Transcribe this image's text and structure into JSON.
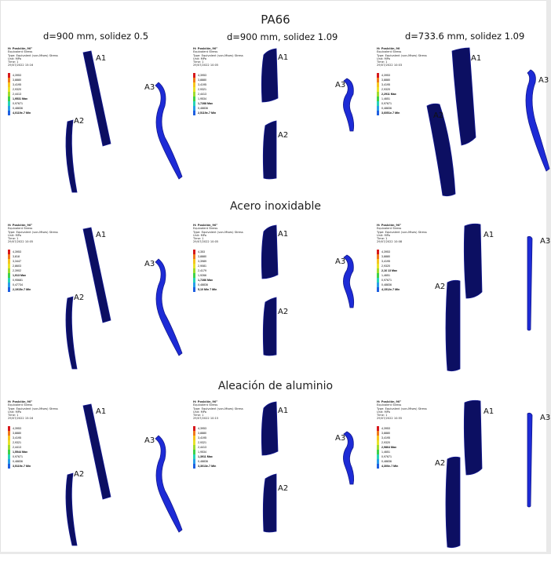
{
  "figure": {
    "main_title": "PA66",
    "columns": [
      "d=900 mm, solidez 0.5",
      "d=900 mm, solidez 1.09",
      "d=733.6 mm, solidez 1.09"
    ],
    "sections": [
      "",
      "Acero inoxidable",
      "Aleación de aluminio"
    ]
  },
  "part_labels": [
    "A1",
    "A2",
    "A3"
  ],
  "colors": {
    "part_dark": "#0c0f62",
    "part_mid": "#12188f",
    "part_light": "#1d2bd6",
    "scale": [
      "#d7191c",
      "#f07a1c",
      "#f6c51e",
      "#e8e22a",
      "#9edc2e",
      "#3fd24a",
      "#28d3b8",
      "#2a9ee8",
      "#1f5fe0",
      "#1a2bd0"
    ]
  },
  "cells": [
    {
      "legend": {
        "header": "H: Posición_90°",
        "lines": [
          "Equivalent Stress",
          "Type: Equivalent (von-Mises) Stress",
          "Unit: MPa",
          "Time: 1",
          "29/07/2022 15:16"
        ],
        "values": [
          "4,3953",
          "3,8880",
          "3,4195",
          "2,9320",
          "2,4413",
          "1,9531 Max",
          "0,97671",
          "0,48836",
          "4,0119e-7 Min"
        ],
        "bold": [
          5,
          8
        ]
      }
    },
    {
      "legend": {
        "header": "H: Posición_90°",
        "lines": [
          "Equivalent Stress",
          "Type: Equivalent (von-Mises) Stress",
          "Unit: MPa",
          "Time: 1",
          "29/07/2022 10:05"
        ],
        "values": [
          "4,3953",
          "3,8880",
          "3,4195",
          "2,9321",
          "2,4413",
          "1,9534",
          "1,7288 Max",
          "0,48836",
          "2,5119e-7 Min"
        ],
        "bold": [
          6,
          8
        ]
      }
    },
    {
      "legend": {
        "header": "H: Posición_90",
        "lines": [
          "Equivalent Stress",
          "Type: Equivalent (von-Mises) Stress",
          "Unit: MPa",
          "Time: 1",
          "29/07/2022 10:03"
        ],
        "values": [
          "4,3953",
          "3,8880",
          "3,4195",
          "2,9320",
          "2,2911 Max",
          "1,4651",
          "0,97671",
          "0,48836",
          "3,6051e-7 Min"
        ],
        "bold": [
          4,
          8
        ]
      }
    },
    {
      "legend": {
        "header": "H: Posición_90°",
        "lines": [
          "Equivalent Stress",
          "Type: Equivalent (von-Mises) Stress",
          "Unit: MPa",
          "Time: 1",
          "29/07/2022 10:05"
        ],
        "values": [
          "4,3953",
          "3,818",
          "3,3447",
          "2,8603",
          "2,3902",
          "1,913 Max",
          "0,95681",
          "0,47734",
          "2,1915e-7 Min"
        ],
        "bold": [
          5,
          8
        ]
      }
    },
    {
      "legend": {
        "header": "H: Posición_90°",
        "lines": [
          "Equivalent Stress",
          "Type: Equivalent (von-Mises) Stress",
          "Unit: MPa",
          "Time: 1",
          "29/07/2022 10:05"
        ],
        "values": [
          "4,353",
          "3,8880",
          "3,3989",
          "2,9081",
          "2,4179",
          "1,9266",
          "1,7286 Max",
          "0,48836",
          "5,10 Min 7 Min"
        ],
        "bold": [
          6,
          8
        ]
      }
    },
    {
      "legend": {
        "header": "H: Posición_90°",
        "lines": [
          "Equivalent Stress",
          "Type: Equivalent (von-Mises) Stress",
          "Unit: MPa",
          "Time: 1",
          "29/07/2022 10:08"
        ],
        "values": [
          "4,3953",
          "3,8880",
          "3,4195",
          "2,9320",
          "2,16 13 Max",
          "1,4651",
          "0,97671",
          "0,48836",
          "4,1512e-7 Min"
        ],
        "bold": [
          4,
          8
        ]
      }
    },
    {
      "legend": {
        "header": "H: Posición_90°",
        "lines": [
          "Equivalent Stress",
          "Type: Equivalent (von-Mises) Stress",
          "Unit: MPa",
          "Time: 1",
          "29/07/2022 15:16"
        ],
        "values": [
          "4,3953",
          "3,8880",
          "3,4195",
          "2,9321",
          "2,4413",
          "1,5544 Max",
          "0,97671",
          "0,48836",
          "3,5119e-7 Min"
        ],
        "bold": [
          5,
          8
        ]
      }
    },
    {
      "legend": {
        "header": "H: Posición_90°",
        "lines": [
          "Equivalent Stress",
          "Type: Equivalent (von-Mises) Stress",
          "Unit: MPa",
          "Time: 1",
          "29/07/2022 10:15"
        ],
        "values": [
          "4,3953",
          "3,8880",
          "3,4195",
          "2,9321",
          "2,4413",
          "1,9534",
          "1,3911 Max",
          "0,48836",
          "3,3013e-7 Min"
        ],
        "bold": [
          6,
          8
        ]
      }
    },
    {
      "legend": {
        "header": "H: Posición_90°",
        "lines": [
          "Equivalent Stress",
          "Type: Equivalent (von-Mises) Stress",
          "Unit: MPa",
          "Time: 1",
          "29/07/2022 10:55"
        ],
        "values": [
          "4,3953",
          "3,8880",
          "3,4195",
          "2,9320",
          "2,9864 Max",
          "1,4651",
          "0,97671",
          "0,48836",
          "4,300e-7 Min"
        ],
        "bold": [
          4,
          8
        ]
      }
    }
  ]
}
